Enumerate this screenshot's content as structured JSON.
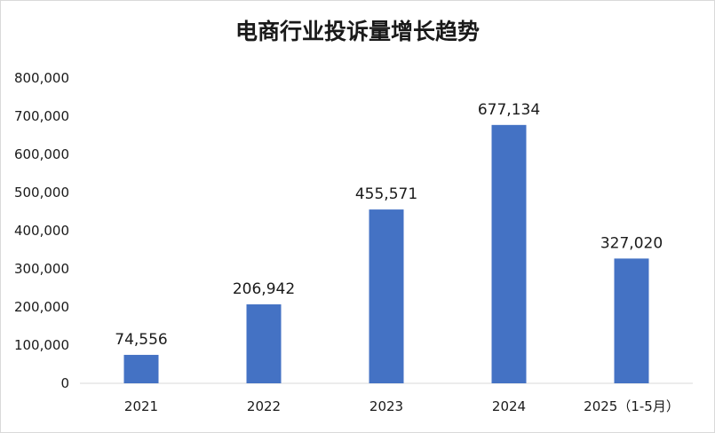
{
  "chart_data": {
    "type": "bar",
    "title": "电商行业投诉量增长趋势",
    "categories": [
      "2021",
      "2022",
      "2023",
      "2024",
      "2025（1-5月）"
    ],
    "values": [
      74556,
      206942,
      455571,
      677134,
      327020
    ],
    "data_labels": [
      "74,556",
      "206,942",
      "455,571",
      "677,134",
      "327,020"
    ],
    "y_ticks": [
      "0",
      "100,000",
      "200,000",
      "300,000",
      "400,000",
      "500,000",
      "600,000",
      "700,000",
      "800,000"
    ],
    "ylim": [
      0,
      800000
    ],
    "grid": false,
    "legend": "none",
    "bar_color": "#4472c4"
  }
}
